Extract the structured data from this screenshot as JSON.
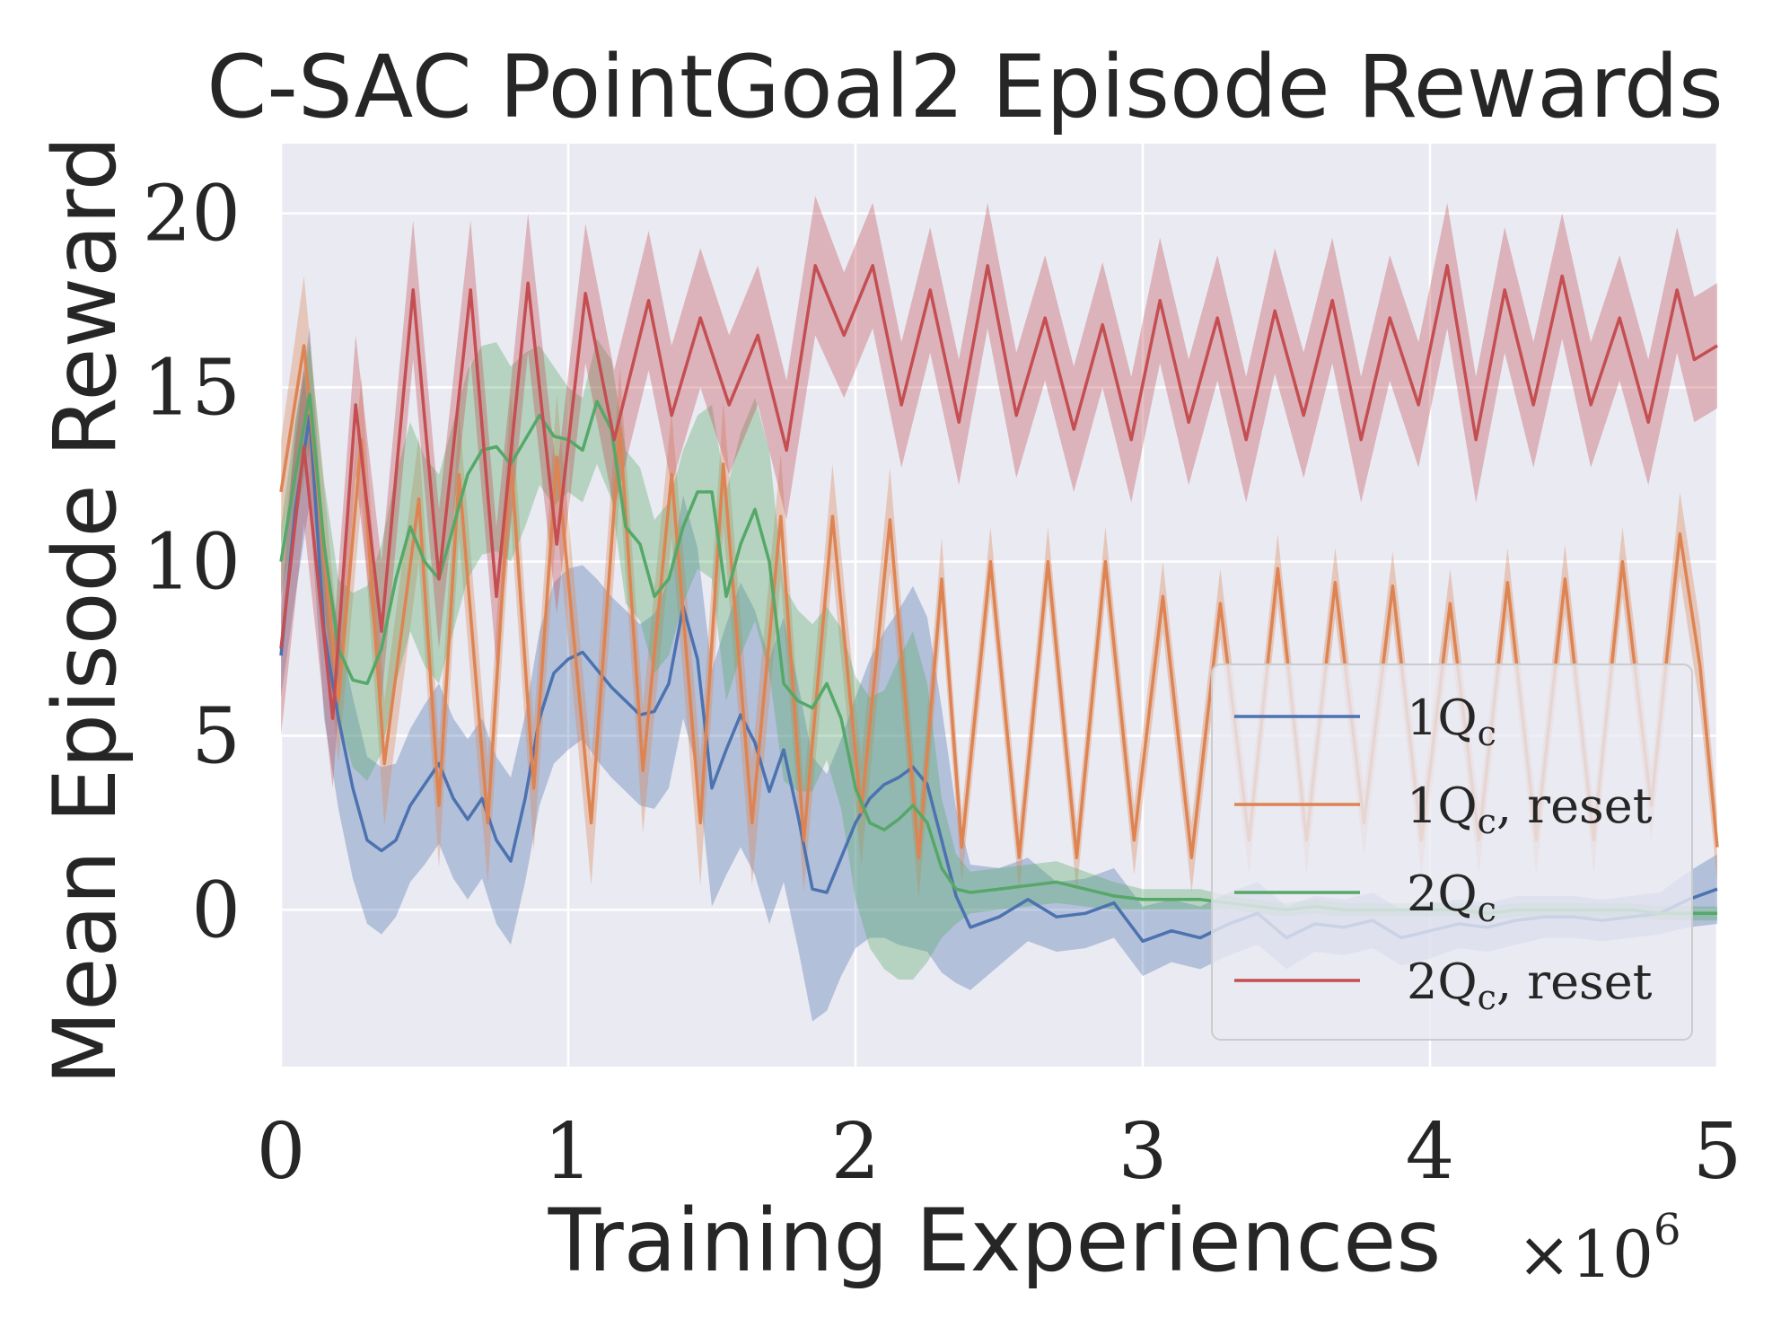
{
  "chart_data": {
    "type": "line",
    "title": "C-SAC PointGoal2 Episode Rewards",
    "xlabel": "Training Experiences",
    "ylabel": "Mean Episode Reward",
    "x_multiplier": {
      "base": "×10",
      "exponent": "6"
    },
    "xlim": [
      0,
      5
    ],
    "ylim": [
      -4.5,
      22
    ],
    "xticks": [
      0,
      1,
      2,
      3,
      4,
      5
    ],
    "xtick_labels": [
      "0",
      "1",
      "2",
      "3",
      "4",
      "5"
    ],
    "yticks": [
      0,
      5,
      10,
      15,
      20
    ],
    "ytick_labels": [
      "0",
      "5",
      "10",
      "15",
      "20"
    ],
    "grid": true,
    "legend_position": "lower-right",
    "series": [
      {
        "name": "1Qc",
        "label_main": "1Q",
        "label_sub": "c",
        "label_suffix": "",
        "color": "#4c72b0",
        "x": [
          0,
          0.05,
          0.1,
          0.15,
          0.2,
          0.25,
          0.3,
          0.35,
          0.4,
          0.45,
          0.5,
          0.55,
          0.6,
          0.65,
          0.7,
          0.75,
          0.8,
          0.85,
          0.9,
          0.95,
          1.0,
          1.05,
          1.1,
          1.15,
          1.2,
          1.25,
          1.3,
          1.35,
          1.4,
          1.45,
          1.5,
          1.55,
          1.6,
          1.65,
          1.7,
          1.75,
          1.8,
          1.85,
          1.9,
          1.95,
          2.0,
          2.05,
          2.1,
          2.15,
          2.2,
          2.25,
          2.3,
          2.35,
          2.4,
          2.5,
          2.6,
          2.7,
          2.8,
          2.9,
          3.0,
          3.1,
          3.2,
          3.3,
          3.4,
          3.5,
          3.6,
          3.7,
          3.8,
          3.9,
          4.0,
          4.1,
          4.2,
          4.3,
          4.4,
          4.5,
          4.6,
          4.7,
          4.8,
          4.9,
          5.0
        ],
        "y": [
          7.3,
          11.5,
          14.2,
          8.0,
          5.5,
          3.5,
          2.0,
          1.7,
          2.0,
          3.0,
          3.6,
          4.2,
          3.2,
          2.6,
          3.2,
          2.0,
          1.4,
          3.2,
          5.5,
          6.8,
          7.2,
          7.4,
          6.9,
          6.4,
          6.0,
          5.6,
          5.7,
          6.5,
          8.7,
          7.2,
          3.5,
          4.6,
          5.6,
          4.8,
          3.4,
          4.6,
          2.7,
          0.6,
          0.5,
          1.5,
          2.5,
          3.2,
          3.6,
          3.8,
          4.1,
          3.6,
          2.0,
          0.4,
          -0.5,
          -0.2,
          0.3,
          -0.2,
          -0.1,
          0.2,
          -0.9,
          -0.6,
          -0.8,
          -0.4,
          -0.1,
          -0.8,
          -0.4,
          -0.5,
          -0.3,
          -0.8,
          -0.6,
          -0.4,
          -0.5,
          -0.3,
          -0.2,
          -0.2,
          -0.3,
          -0.2,
          -0.1,
          0.3,
          0.6
        ],
        "band": [
          1.2,
          2.5,
          2.5,
          2.5,
          2.6,
          2.6,
          2.4,
          2.4,
          2.2,
          2.2,
          2.3,
          2.3,
          2.3,
          2.3,
          2.3,
          2.4,
          2.4,
          2.4,
          2.5,
          2.6,
          2.6,
          2.5,
          2.6,
          2.6,
          2.6,
          2.6,
          2.8,
          3.0,
          3.2,
          3.2,
          3.4,
          3.6,
          3.8,
          3.8,
          3.8,
          3.8,
          3.8,
          3.8,
          3.4,
          3.4,
          3.6,
          4.0,
          4.4,
          4.8,
          5.2,
          4.8,
          3.8,
          2.5,
          1.8,
          1.4,
          1.2,
          1.0,
          1.0,
          1.0,
          1.0,
          0.9,
          0.9,
          0.9,
          0.9,
          0.9,
          0.8,
          0.8,
          0.8,
          0.8,
          0.8,
          0.7,
          0.7,
          0.7,
          0.6,
          0.6,
          0.6,
          0.6,
          0.6,
          0.8,
          1.0
        ]
      },
      {
        "name": "1Qc, reset",
        "label_main": "1Q",
        "label_sub": "c",
        "label_suffix": ", reset",
        "color": "#dd8452",
        "x": [
          0,
          0.08,
          0.2,
          0.28,
          0.36,
          0.48,
          0.55,
          0.62,
          0.72,
          0.8,
          0.88,
          0.96,
          1.08,
          1.18,
          1.26,
          1.36,
          1.46,
          1.54,
          1.64,
          1.74,
          1.82,
          1.92,
          2.02,
          2.12,
          2.22,
          2.3,
          2.37,
          2.47,
          2.57,
          2.67,
          2.77,
          2.87,
          2.97,
          3.07,
          3.17,
          3.27,
          3.37,
          3.47,
          3.57,
          3.67,
          3.77,
          3.87,
          3.97,
          4.07,
          4.17,
          4.27,
          4.37,
          4.47,
          4.57,
          4.67,
          4.77,
          4.87,
          4.94,
          5.0
        ],
        "y": [
          12.0,
          16.2,
          6.0,
          13.5,
          4.2,
          11.8,
          3.0,
          12.5,
          2.5,
          13.0,
          3.5,
          13.0,
          2.5,
          13.8,
          4.0,
          12.5,
          2.5,
          12.8,
          2.5,
          11.3,
          2.0,
          11.3,
          2.8,
          11.2,
          1.5,
          9.5,
          1.8,
          10.0,
          1.5,
          10.0,
          1.5,
          10.0,
          2.0,
          9.0,
          1.5,
          8.8,
          2.0,
          9.8,
          2.0,
          9.4,
          2.5,
          9.3,
          2.0,
          8.8,
          2.0,
          9.4,
          2.0,
          9.5,
          2.0,
          10.0,
          3.0,
          10.8,
          7.0,
          1.8
        ],
        "band": [
          1.5,
          2.0,
          1.8,
          1.8,
          1.8,
          1.8,
          1.8,
          1.8,
          1.8,
          1.8,
          1.8,
          1.8,
          1.8,
          1.8,
          1.8,
          1.8,
          1.8,
          1.8,
          1.8,
          1.8,
          1.5,
          1.5,
          1.5,
          1.5,
          1.2,
          1.2,
          1.0,
          1.0,
          1.0,
          1.0,
          1.0,
          1.0,
          1.0,
          1.0,
          1.0,
          1.0,
          1.0,
          1.0,
          1.0,
          1.0,
          1.0,
          1.0,
          1.0,
          1.0,
          1.0,
          1.0,
          1.0,
          1.0,
          1.0,
          1.0,
          1.0,
          1.2,
          1.2,
          1.0
        ]
      },
      {
        "name": "2Qc",
        "label_main": "2Q",
        "label_sub": "c",
        "label_suffix": "",
        "color": "#55a868",
        "x": [
          0,
          0.05,
          0.1,
          0.15,
          0.2,
          0.25,
          0.3,
          0.35,
          0.4,
          0.45,
          0.5,
          0.55,
          0.6,
          0.65,
          0.7,
          0.75,
          0.8,
          0.85,
          0.9,
          0.95,
          1.0,
          1.05,
          1.1,
          1.15,
          1.2,
          1.25,
          1.3,
          1.35,
          1.4,
          1.45,
          1.5,
          1.55,
          1.6,
          1.65,
          1.7,
          1.75,
          1.8,
          1.85,
          1.9,
          1.95,
          2.0,
          2.05,
          2.1,
          2.15,
          2.2,
          2.25,
          2.3,
          2.35,
          2.4,
          2.5,
          2.6,
          2.7,
          2.8,
          2.9,
          3.0,
          3.1,
          3.2,
          3.3,
          3.4,
          3.5,
          3.6,
          3.7,
          3.8,
          3.9,
          4.0,
          4.1,
          4.2,
          4.3,
          4.4,
          4.5,
          4.6,
          4.7,
          4.8,
          4.9,
          5.0
        ],
        "y": [
          10.0,
          12.5,
          14.8,
          10.5,
          7.5,
          6.6,
          6.5,
          7.5,
          9.5,
          11.0,
          10.0,
          9.5,
          11.0,
          12.5,
          13.2,
          13.3,
          12.8,
          13.5,
          14.2,
          13.6,
          13.5,
          13.2,
          14.6,
          13.8,
          11.0,
          10.5,
          9.0,
          9.5,
          11.0,
          12.0,
          12.0,
          9.0,
          10.5,
          11.5,
          10.0,
          6.5,
          6.0,
          5.8,
          6.5,
          5.5,
          3.5,
          2.5,
          2.3,
          2.6,
          3.0,
          2.5,
          1.2,
          0.6,
          0.5,
          0.6,
          0.7,
          0.8,
          0.6,
          0.4,
          0.3,
          0.3,
          0.3,
          0.2,
          0.1,
          0.0,
          0.1,
          0.0,
          0.0,
          0.0,
          0.0,
          0.0,
          -0.1,
          0.0,
          0.0,
          0.0,
          0.0,
          0.0,
          -0.1,
          -0.1,
          -0.1
        ],
        "band": [
          1.0,
          1.5,
          1.5,
          1.8,
          2.0,
          2.5,
          2.8,
          3.0,
          3.0,
          3.0,
          3.0,
          3.0,
          3.0,
          3.0,
          3.0,
          3.0,
          2.8,
          2.5,
          2.0,
          2.0,
          1.5,
          1.5,
          1.8,
          2.0,
          2.2,
          2.2,
          2.2,
          2.2,
          2.2,
          2.2,
          2.5,
          3.0,
          3.2,
          3.2,
          3.2,
          2.8,
          2.6,
          2.4,
          2.2,
          2.6,
          3.2,
          3.6,
          4.0,
          4.6,
          5.0,
          4.0,
          2.0,
          1.0,
          0.6,
          0.6,
          0.6,
          0.6,
          0.5,
          0.4,
          0.3,
          0.3,
          0.3,
          0.2,
          0.2,
          0.2,
          0.2,
          0.2,
          0.2,
          0.2,
          0.2,
          0.2,
          0.2,
          0.2,
          0.2,
          0.2,
          0.2,
          0.2,
          0.2,
          0.2,
          0.2
        ]
      },
      {
        "name": "2Qc, reset",
        "label_main": "2Q",
        "label_sub": "c",
        "label_suffix": ", reset",
        "color": "#c44e52",
        "x": [
          0,
          0.08,
          0.18,
          0.26,
          0.35,
          0.46,
          0.55,
          0.66,
          0.75,
          0.86,
          0.96,
          1.06,
          1.16,
          1.28,
          1.36,
          1.46,
          1.56,
          1.66,
          1.76,
          1.86,
          1.96,
          2.06,
          2.16,
          2.26,
          2.36,
          2.46,
          2.56,
          2.66,
          2.76,
          2.86,
          2.96,
          3.06,
          3.16,
          3.26,
          3.36,
          3.46,
          3.56,
          3.66,
          3.76,
          3.86,
          3.96,
          4.06,
          4.16,
          4.26,
          4.36,
          4.46,
          4.56,
          4.66,
          4.76,
          4.86,
          4.92,
          5.0
        ],
        "y": [
          7.5,
          13.3,
          5.5,
          14.5,
          8.0,
          17.8,
          9.5,
          17.8,
          9.0,
          18.0,
          10.5,
          17.7,
          13.5,
          17.5,
          14.2,
          17.0,
          14.5,
          16.5,
          13.2,
          18.5,
          16.5,
          18.5,
          14.5,
          17.8,
          14.0,
          18.5,
          14.2,
          17.0,
          13.8,
          16.8,
          13.5,
          17.5,
          14.0,
          17.0,
          13.5,
          17.2,
          14.2,
          17.5,
          13.5,
          17.0,
          14.5,
          18.5,
          13.5,
          17.8,
          14.5,
          18.2,
          14.5,
          17.0,
          14.0,
          17.8,
          15.8,
          16.2
        ],
        "band": [
          2.5,
          2.2,
          2.0,
          2.0,
          2.0,
          2.0,
          2.0,
          2.0,
          2.0,
          2.0,
          2.0,
          2.0,
          2.0,
          2.0,
          2.0,
          2.0,
          2.0,
          2.0,
          2.0,
          2.0,
          1.8,
          1.8,
          1.8,
          1.8,
          1.8,
          1.8,
          1.8,
          1.8,
          1.8,
          1.8,
          1.8,
          1.8,
          1.8,
          1.8,
          1.8,
          1.8,
          1.8,
          1.8,
          1.8,
          1.8,
          1.8,
          1.8,
          1.8,
          1.8,
          1.8,
          1.8,
          1.8,
          1.8,
          1.8,
          1.8,
          1.8,
          1.8
        ]
      }
    ]
  }
}
